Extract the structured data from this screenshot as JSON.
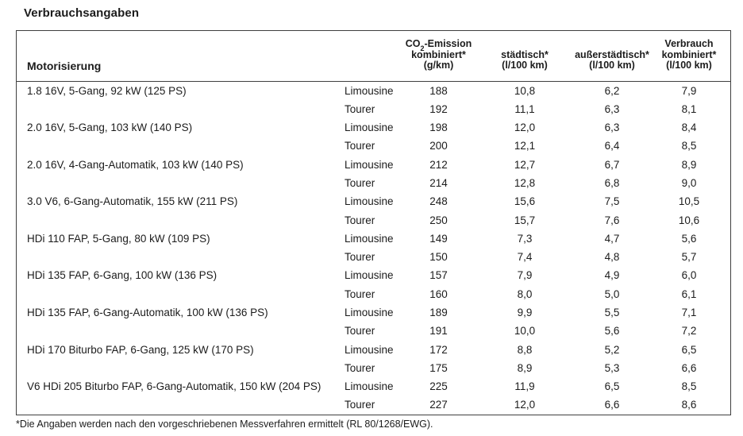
{
  "title": "Verbrauchsangaben",
  "colors": {
    "background": "#ffffff",
    "text": "#1c1c1c",
    "border": "#3f3f3f"
  },
  "table": {
    "header": {
      "motorisierung_label": "Motorisierung",
      "co2_col": {
        "line1_pre": "CO",
        "line1_sub": "2",
        "line1_post": "-Emission",
        "line2": "kombiniert*",
        "line3": "(g/km)"
      },
      "urban_col": {
        "line1": "städtisch*",
        "line2": "(l/100 km)"
      },
      "extra_urban_col": {
        "line1": "außerstädtisch*",
        "line2": "(l/100 km)"
      },
      "combined_col": {
        "line1": "Verbrauch",
        "line2": "kombiniert*",
        "line3": "(l/100 km)"
      }
    },
    "engines": [
      {
        "name": "1.8 16V, 5-Gang, 92 kW (125 PS)",
        "variants": [
          {
            "body": "Limousine",
            "co2": "188",
            "urban": "10,8",
            "extra_urban": "6,2",
            "combined": "7,9"
          },
          {
            "body": "Tourer",
            "co2": "192",
            "urban": "11,1",
            "extra_urban": "6,3",
            "combined": "8,1"
          }
        ]
      },
      {
        "name": "2.0 16V, 5-Gang, 103 kW (140 PS)",
        "variants": [
          {
            "body": "Limousine",
            "co2": "198",
            "urban": "12,0",
            "extra_urban": "6,3",
            "combined": "8,4"
          },
          {
            "body": "Tourer",
            "co2": "200",
            "urban": "12,1",
            "extra_urban": "6,4",
            "combined": "8,5"
          }
        ]
      },
      {
        "name": "2.0 16V, 4-Gang-Automatik, 103 kW (140 PS)",
        "variants": [
          {
            "body": "Limousine",
            "co2": "212",
            "urban": "12,7",
            "extra_urban": "6,7",
            "combined": "8,9"
          },
          {
            "body": "Tourer",
            "co2": "214",
            "urban": "12,8",
            "extra_urban": "6,8",
            "combined": "9,0"
          }
        ]
      },
      {
        "name": "3.0 V6, 6-Gang-Automatik, 155 kW (211 PS)",
        "variants": [
          {
            "body": "Limousine",
            "co2": "248",
            "urban": "15,6",
            "extra_urban": "7,5",
            "combined": "10,5"
          },
          {
            "body": "Tourer",
            "co2": "250",
            "urban": "15,7",
            "extra_urban": "7,6",
            "combined": "10,6"
          }
        ]
      },
      {
        "name": "HDi 110 FAP, 5-Gang, 80 kW (109 PS)",
        "variants": [
          {
            "body": "Limousine",
            "co2": "149",
            "urban": "7,3",
            "extra_urban": "4,7",
            "combined": "5,6"
          },
          {
            "body": "Tourer",
            "co2": "150",
            "urban": "7,4",
            "extra_urban": "4,8",
            "combined": "5,7"
          }
        ]
      },
      {
        "name": "HDi 135 FAP, 6-Gang, 100 kW (136 PS)",
        "variants": [
          {
            "body": "Limousine",
            "co2": "157",
            "urban": "7,9",
            "extra_urban": "4,9",
            "combined": "6,0"
          },
          {
            "body": "Tourer",
            "co2": "160",
            "urban": "8,0",
            "extra_urban": "5,0",
            "combined": "6,1"
          }
        ]
      },
      {
        "name": "HDi 135 FAP, 6-Gang-Automatik, 100 kW (136 PS)",
        "variants": [
          {
            "body": "Limousine",
            "co2": "189",
            "urban": "9,9",
            "extra_urban": "5,5",
            "combined": "7,1"
          },
          {
            "body": "Tourer",
            "co2": "191",
            "urban": "10,0",
            "extra_urban": "5,6",
            "combined": "7,2"
          }
        ]
      },
      {
        "name": "HDi 170 Biturbo FAP, 6-Gang, 125 kW (170 PS)",
        "variants": [
          {
            "body": "Limousine",
            "co2": "172",
            "urban": "8,8",
            "extra_urban": "5,2",
            "combined": "6,5"
          },
          {
            "body": "Tourer",
            "co2": "175",
            "urban": "8,9",
            "extra_urban": "5,3",
            "combined": "6,6"
          }
        ]
      },
      {
        "name": "V6 HDi 205 Biturbo FAP, 6-Gang-Automatik, 150 kW (204 PS)",
        "variants": [
          {
            "body": "Limousine",
            "co2": "225",
            "urban": "11,9",
            "extra_urban": "6,5",
            "combined": "8,5"
          },
          {
            "body": "Tourer",
            "co2": "227",
            "urban": "12,0",
            "extra_urban": "6,6",
            "combined": "8,6"
          }
        ]
      }
    ]
  },
  "footnote": "*Die Angaben werden nach den vorgeschriebenen Messverfahren ermittelt (RL 80/1268/EWG)."
}
